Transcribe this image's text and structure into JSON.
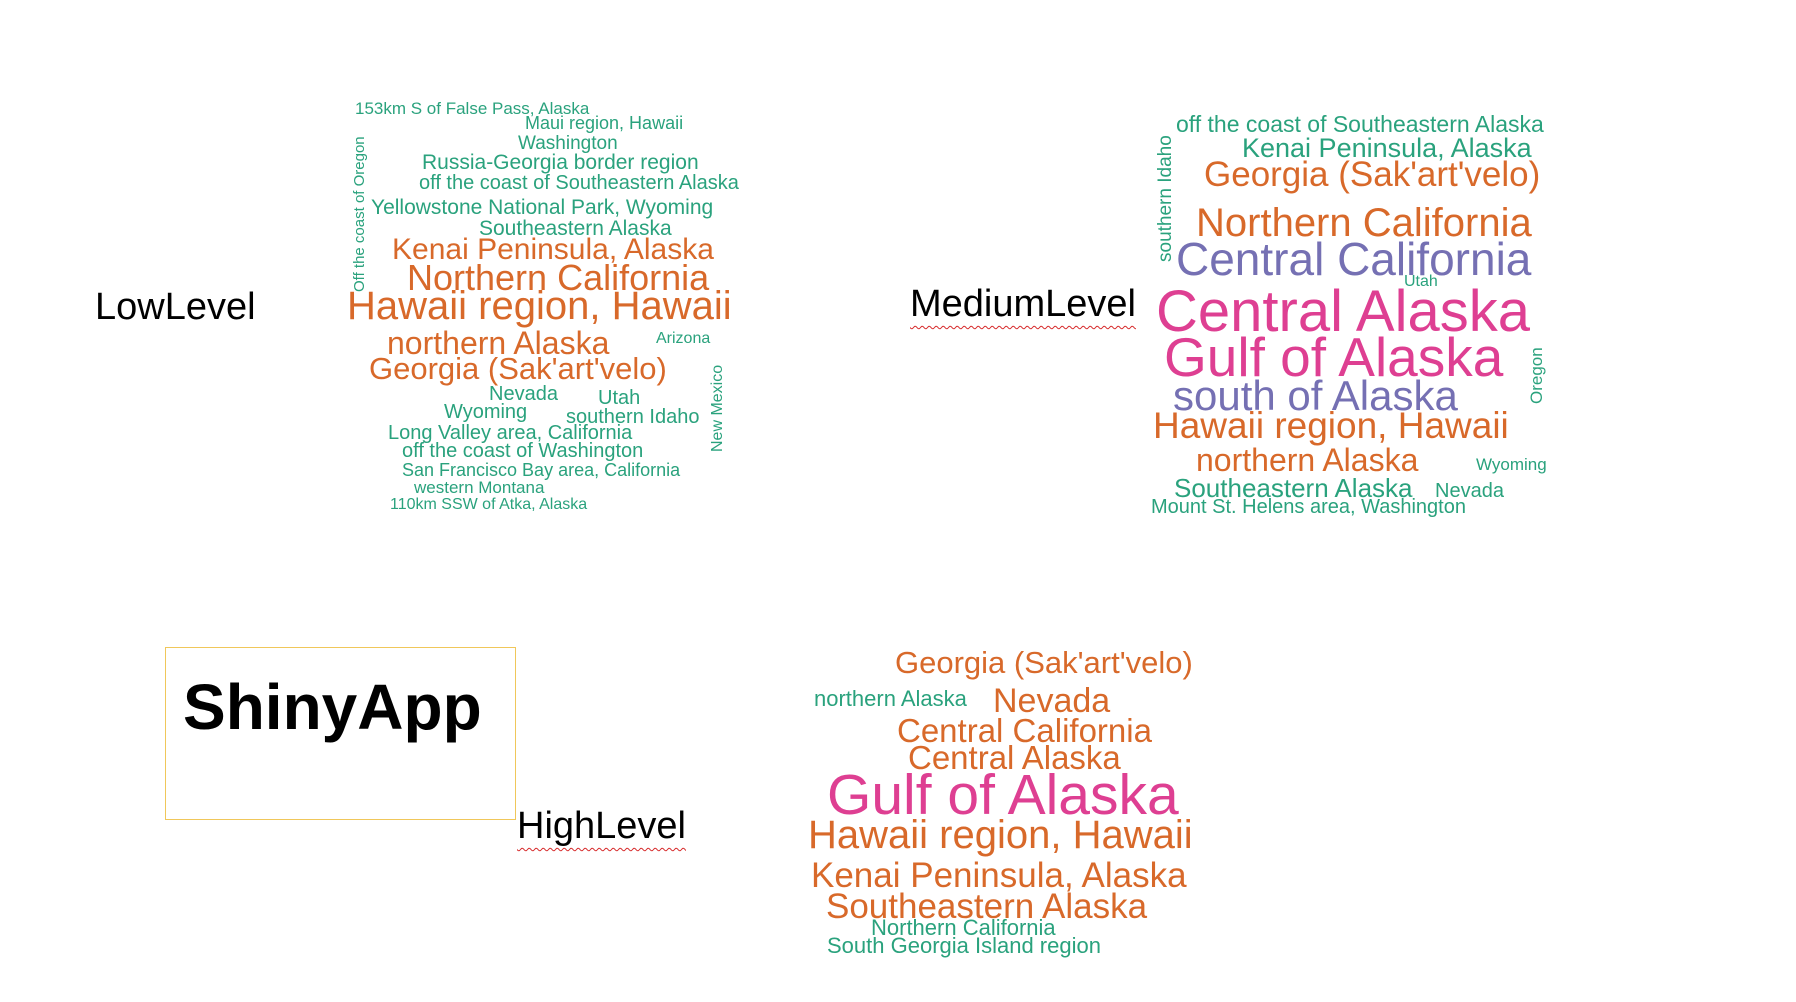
{
  "colors": {
    "teal": "#2aa27d",
    "orange": "#d8692a",
    "purple": "#7570b3",
    "magenta": "#de3f92",
    "box_border": "#f0c75a",
    "squiggle": "#d62728"
  },
  "labels": {
    "low": "LowLevel",
    "medium": "MediumLevel",
    "high": "HighLevel",
    "app": "ShinyApp"
  },
  "clouds": {
    "low": [
      {
        "text": "153km S of False Pass, Alaska",
        "color": "teal"
      },
      {
        "text": "Maui region, Hawaii",
        "color": "teal"
      },
      {
        "text": "Washington",
        "color": "teal"
      },
      {
        "text": "Russia-Georgia border region",
        "color": "teal"
      },
      {
        "text": "off the coast of Southeastern Alaska",
        "color": "teal"
      },
      {
        "text": "Yellowstone National Park, Wyoming",
        "color": "teal"
      },
      {
        "text": "Southeastern Alaska",
        "color": "teal"
      },
      {
        "text": "Kenai Peninsula, Alaska",
        "color": "orange"
      },
      {
        "text": "Northern California",
        "color": "orange"
      },
      {
        "text": "Hawaii region, Hawaii",
        "color": "orange"
      },
      {
        "text": "northern Alaska",
        "color": "orange"
      },
      {
        "text": "Arizona",
        "color": "teal"
      },
      {
        "text": "Georgia (Sak'art'velo)",
        "color": "orange"
      },
      {
        "text": "Nevada",
        "color": "teal"
      },
      {
        "text": "Utah",
        "color": "teal"
      },
      {
        "text": "Wyoming",
        "color": "teal"
      },
      {
        "text": "southern Idaho",
        "color": "teal"
      },
      {
        "text": "Long Valley area, California",
        "color": "teal"
      },
      {
        "text": "off the coast of Washington",
        "color": "teal"
      },
      {
        "text": "San Francisco Bay area, California",
        "color": "teal"
      },
      {
        "text": "western Montana",
        "color": "teal"
      },
      {
        "text": "110km SSW of Atka, Alaska",
        "color": "teal"
      },
      {
        "text": "Off the coast of Oregon",
        "color": "teal"
      },
      {
        "text": "New Mexico",
        "color": "teal"
      }
    ],
    "medium": [
      {
        "text": "off the coast of Southeastern Alaska",
        "color": "teal"
      },
      {
        "text": "Kenai Peninsula, Alaska",
        "color": "teal"
      },
      {
        "text": "Georgia (Sak'art'velo)",
        "color": "orange"
      },
      {
        "text": "Northern California",
        "color": "orange"
      },
      {
        "text": "Central California",
        "color": "purple"
      },
      {
        "text": "Utah",
        "color": "teal"
      },
      {
        "text": "Central Alaska",
        "color": "magenta"
      },
      {
        "text": "Gulf of Alaska",
        "color": "magenta"
      },
      {
        "text": "south of Alaska",
        "color": "purple"
      },
      {
        "text": "Hawaii region, Hawaii",
        "color": "orange"
      },
      {
        "text": "northern Alaska",
        "color": "orange"
      },
      {
        "text": "Wyoming",
        "color": "teal"
      },
      {
        "text": "Southeastern Alaska",
        "color": "teal"
      },
      {
        "text": "Nevada",
        "color": "teal"
      },
      {
        "text": "Mount St. Helens area, Washington",
        "color": "teal"
      },
      {
        "text": "southern Idaho",
        "color": "teal"
      },
      {
        "text": "Oregon",
        "color": "teal"
      }
    ],
    "high": [
      {
        "text": "Georgia (Sak'art'velo)",
        "color": "orange"
      },
      {
        "text": "northern Alaska",
        "color": "teal"
      },
      {
        "text": "Nevada",
        "color": "orange"
      },
      {
        "text": "Central California",
        "color": "orange"
      },
      {
        "text": "Central Alaska",
        "color": "orange"
      },
      {
        "text": "Gulf of Alaska",
        "color": "magenta"
      },
      {
        "text": "Hawaii region, Hawaii",
        "color": "orange"
      },
      {
        "text": "Kenai Peninsula, Alaska",
        "color": "orange"
      },
      {
        "text": "Southeastern Alaska",
        "color": "orange"
      },
      {
        "text": "Northern California",
        "color": "teal"
      },
      {
        "text": "South Georgia Island region",
        "color": "teal"
      }
    ]
  }
}
